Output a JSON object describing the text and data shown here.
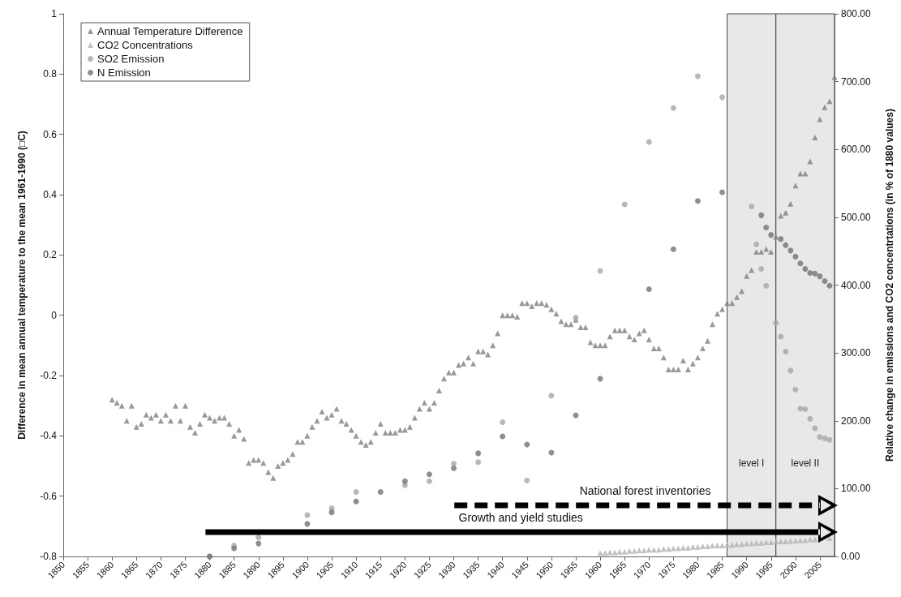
{
  "chart_data": {
    "type": "scatter",
    "ylabel": "Difference in mean annual temperature to the mean 1961-1990 (□C)",
    "y2label": "Relative change in emissions and CO2 concentrtations (in % of 1880 values)",
    "xlim": [
      1850,
      2008
    ],
    "xticks": [
      1850,
      1855,
      1860,
      1865,
      1870,
      1875,
      1880,
      1885,
      1890,
      1895,
      1900,
      1905,
      1910,
      1915,
      1920,
      1925,
      1930,
      1935,
      1940,
      1945,
      1950,
      1955,
      1960,
      1965,
      1970,
      1975,
      1980,
      1985,
      1990,
      1995,
      2000,
      2005
    ],
    "ylim": [
      -0.8,
      1
    ],
    "yticks": [
      -0.8,
      -0.6,
      -0.4,
      -0.2,
      0,
      0.2,
      0.4,
      0.6,
      0.8,
      1
    ],
    "y2lim": [
      0,
      800
    ],
    "y2ticks": [
      {
        "value": 0,
        "label": "0.00"
      },
      {
        "value": 100,
        "label": "100.00"
      },
      {
        "value": 200,
        "label": "200.00"
      },
      {
        "value": 300,
        "label": "300.00"
      },
      {
        "value": 400,
        "label": "400.00"
      },
      {
        "value": 500,
        "label": "500.00"
      },
      {
        "value": 600,
        "label": "600.00"
      },
      {
        "value": 700,
        "label": "700.00"
      },
      {
        "value": 800,
        "label": "800.00"
      }
    ],
    "legend": "top left",
    "series": [
      {
        "name": "Annual Temperature Difference",
        "color": "#7f7f7f",
        "marker": "triangle",
        "x": [
          1860,
          1861,
          1862,
          1863,
          1864,
          1865,
          1866,
          1867,
          1868,
          1869,
          1870,
          1871,
          1872,
          1873,
          1874,
          1875,
          1876,
          1877,
          1878,
          1879,
          1880,
          1881,
          1882,
          1883,
          1884,
          1885,
          1886,
          1887,
          1888,
          1889,
          1890,
          1891,
          1892,
          1893,
          1894,
          1895,
          1896,
          1897,
          1898,
          1899,
          1900,
          1901,
          1902,
          1903,
          1904,
          1905,
          1906,
          1907,
          1908,
          1909,
          1910,
          1911,
          1912,
          1913,
          1914,
          1915,
          1916,
          1917,
          1918,
          1919,
          1920,
          1921,
          1922,
          1923,
          1924,
          1925,
          1926,
          1927,
          1928,
          1929,
          1930,
          1931,
          1932,
          1933,
          1934,
          1935,
          1936,
          1937,
          1938,
          1939,
          1940,
          1941,
          1942,
          1943,
          1944,
          1945,
          1946,
          1947,
          1948,
          1949,
          1950,
          1951,
          1952,
          1953,
          1954,
          1955,
          1956,
          1957,
          1958,
          1959,
          1960,
          1961,
          1962,
          1963,
          1964,
          1965,
          1966,
          1967,
          1968,
          1969,
          1970,
          1971,
          1972,
          1973,
          1974,
          1975,
          1976,
          1977,
          1978,
          1979,
          1980,
          1981,
          1982,
          1983,
          1984,
          1985,
          1986,
          1987,
          1988,
          1989,
          1990,
          1991,
          1992,
          1993,
          1994,
          1995,
          1996,
          1997,
          1998,
          1999,
          2000,
          2001,
          2002,
          2003,
          2004,
          2005,
          2006,
          2007,
          2008
        ],
        "values": [
          -0.28,
          -0.29,
          -0.3,
          -0.35,
          -0.3,
          -0.37,
          -0.36,
          -0.33,
          -0.34,
          -0.33,
          -0.35,
          -0.33,
          -0.35,
          -0.3,
          -0.35,
          -0.3,
          -0.37,
          -0.39,
          -0.36,
          -0.33,
          -0.34,
          -0.35,
          -0.34,
          -0.34,
          -0.36,
          -0.4,
          -0.38,
          -0.41,
          -0.49,
          -0.48,
          -0.48,
          -0.49,
          -0.52,
          -0.54,
          -0.5,
          -0.49,
          -0.48,
          -0.46,
          -0.42,
          -0.42,
          -0.4,
          -0.37,
          -0.35,
          -0.32,
          -0.34,
          -0.33,
          -0.31,
          -0.35,
          -0.36,
          -0.38,
          -0.4,
          -0.42,
          -0.43,
          -0.42,
          -0.39,
          -0.36,
          -0.39,
          -0.39,
          -0.39,
          -0.38,
          -0.38,
          -0.37,
          -0.34,
          -0.31,
          -0.29,
          -0.31,
          -0.29,
          -0.25,
          -0.21,
          -0.19,
          -0.19,
          -0.165,
          -0.16,
          -0.14,
          -0.16,
          -0.12,
          -0.12,
          -0.13,
          -0.1,
          -0.06,
          0.0,
          0.0,
          0.0,
          -0.005,
          0.04,
          0.04,
          0.03,
          0.04,
          0.04,
          0.035,
          0.02,
          0.005,
          -0.02,
          -0.03,
          -0.03,
          -0.015,
          -0.04,
          -0.04,
          -0.09,
          -0.1,
          -0.1,
          -0.1,
          -0.07,
          -0.05,
          -0.05,
          -0.05,
          -0.07,
          -0.08,
          -0.06,
          -0.05,
          -0.08,
          -0.11,
          -0.11,
          -0.14,
          -0.18,
          -0.18,
          -0.18,
          -0.15,
          -0.18,
          -0.16,
          -0.14,
          -0.11,
          -0.085,
          -0.03,
          0.005,
          0.02,
          0.04,
          0.04,
          0.06,
          0.08,
          0.13,
          0.15,
          0.21,
          0.21,
          0.22,
          0.21,
          0.26,
          0.33,
          0.34,
          0.37,
          0.43,
          0.47,
          0.47,
          0.51,
          0.59,
          0.65,
          0.69,
          0.71,
          0.79
        ]
      },
      {
        "name": "CO2 Concentrations",
        "color": "#b3b3b3",
        "marker": "triangle",
        "axis": "y2",
        "x": [
          1960,
          1961,
          1962,
          1963,
          1964,
          1965,
          1966,
          1967,
          1968,
          1969,
          1970,
          1971,
          1972,
          1973,
          1974,
          1975,
          1976,
          1977,
          1978,
          1979,
          1980,
          1981,
          1982,
          1983,
          1984,
          1985,
          1986,
          1987,
          1988,
          1989,
          1990,
          1991,
          1992,
          1993,
          1994,
          1995,
          1996,
          1997,
          1998,
          1999,
          2000,
          2001,
          2002,
          2003,
          2004,
          2005,
          2006,
          2007
        ],
        "values": [
          5,
          5,
          6,
          6,
          7,
          7,
          8,
          8,
          9,
          9,
          10,
          10,
          10,
          11,
          11,
          12,
          12,
          13,
          13,
          14,
          14,
          15,
          15,
          16,
          16,
          16,
          17,
          17,
          18,
          18,
          19,
          19,
          20,
          20,
          21,
          21,
          22,
          22,
          22,
          23,
          23,
          24,
          24,
          25,
          25,
          null,
          null,
          27
        ]
      },
      {
        "name": "SO2 Emission",
        "color": "#a6a6a6",
        "marker": "circle",
        "axis": "y2",
        "x": [
          1880,
          1885,
          1890,
          1900,
          1905,
          1910,
          1920,
          1925,
          1930,
          1935,
          1940,
          1945,
          1950,
          1955,
          1960,
          1965,
          1970,
          1975,
          1980,
          1985,
          1991,
          1992,
          1993,
          1994,
          1996,
          1997,
          1998,
          1999,
          2000,
          2001,
          2002,
          2003,
          2004,
          2005,
          2006,
          2007
        ],
        "values": [
          0,
          16,
          28,
          61,
          71,
          95,
          105,
          111,
          137,
          139,
          198,
          112,
          237,
          352,
          421,
          519,
          611,
          661,
          708,
          677,
          516,
          460,
          424,
          399,
          344,
          324,
          302,
          274,
          246,
          218,
          217,
          203,
          189,
          176,
          174,
          172
        ]
      },
      {
        "name": "N Emission",
        "color": "#737373",
        "marker": "circle",
        "axis": "y2",
        "x": [
          1880,
          1885,
          1890,
          1895,
          1900,
          1905,
          1910,
          1915,
          1920,
          1925,
          1930,
          1935,
          1940,
          1945,
          1950,
          1955,
          1960,
          1970,
          1975,
          1980,
          1985,
          1993,
          1994,
          1995,
          1997,
          1998,
          1999,
          2000,
          2001,
          2002,
          2003,
          2004,
          2005,
          2006,
          2007
        ],
        "values": [
          0,
          12,
          19,
          null,
          48,
          65,
          81,
          95,
          111,
          121,
          130,
          152,
          177,
          165,
          153,
          208,
          262,
          394,
          453,
          524,
          537,
          503,
          485,
          474,
          468,
          459,
          451,
          442,
          432,
          424,
          418,
          417,
          413,
          406,
          399
        ]
      }
    ],
    "bands": [
      {
        "axis": "x",
        "from": 1986,
        "to": 1996,
        "label": "level I",
        "color": "#e8e8e8"
      },
      {
        "axis": "x",
        "from": 1996,
        "to": 2008,
        "label": "level II",
        "color": "#e8e8e8"
      }
    ],
    "annotations": [
      "National forest inventories",
      "Growth and yield studies"
    ]
  }
}
